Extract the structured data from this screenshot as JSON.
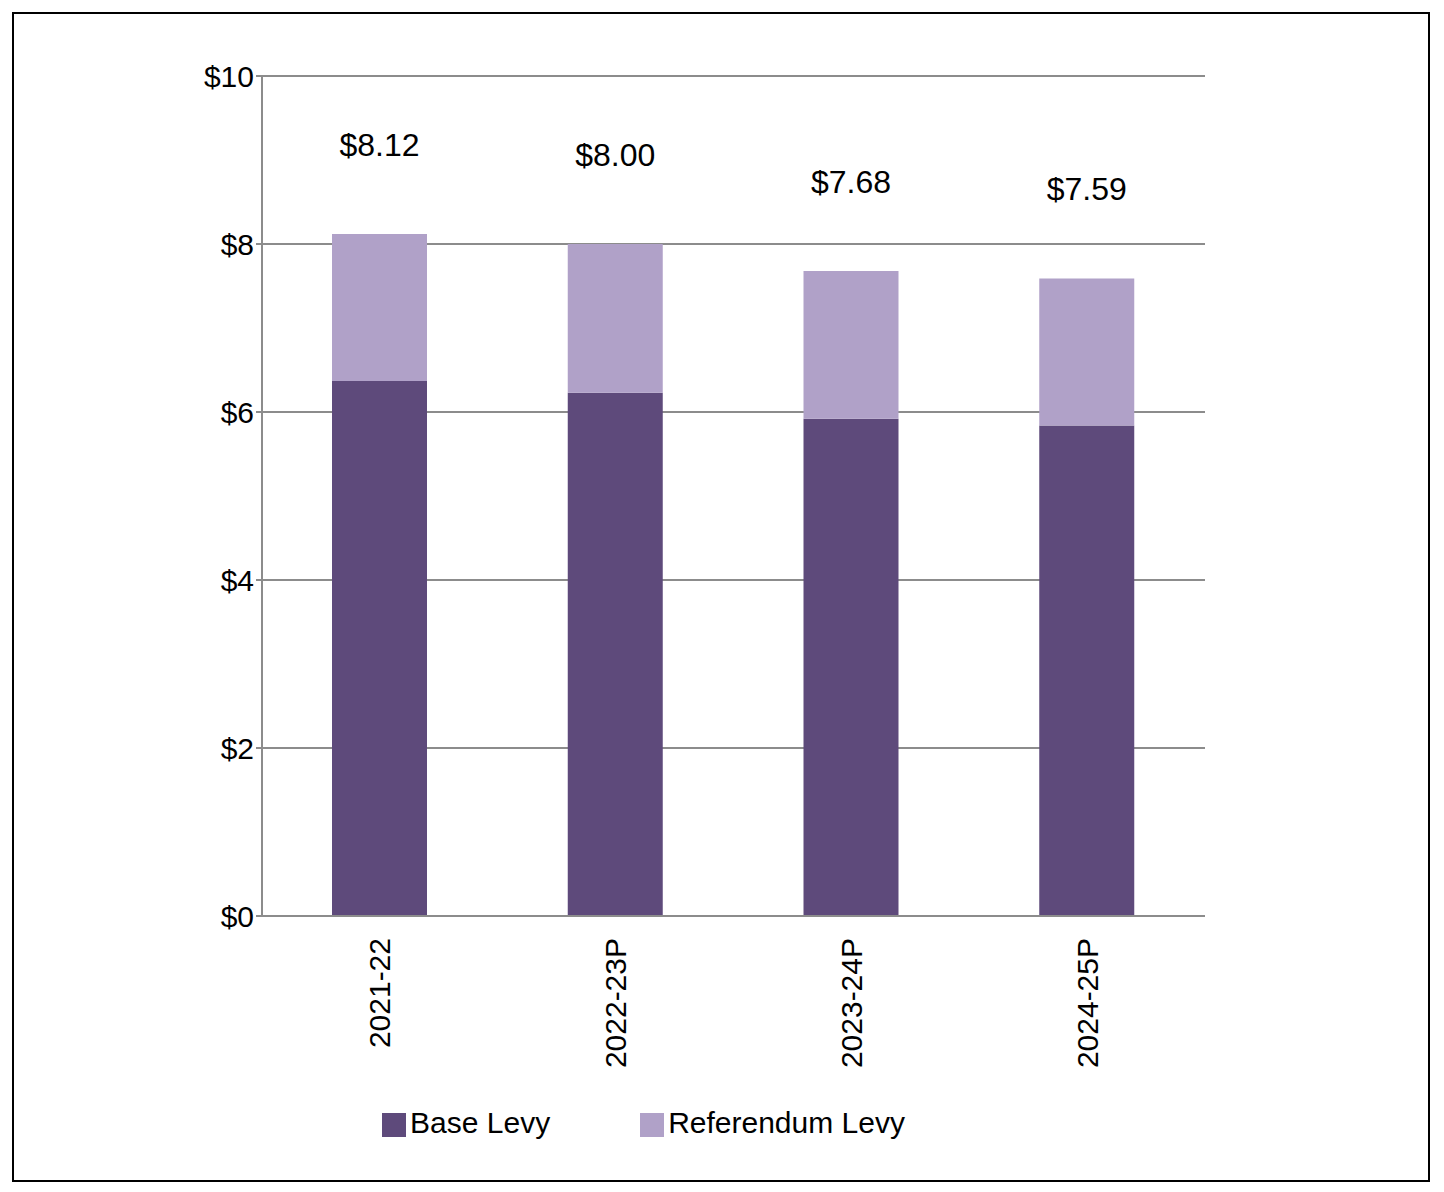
{
  "chart_data": {
    "type": "bar",
    "stacked": true,
    "grid": true,
    "legend": "bottom",
    "categories": [
      "2021-22",
      "2022-23P",
      "2023-24P",
      "2024-25P"
    ],
    "series": [
      {
        "name": "Base Levy",
        "color": "#5e4a7b",
        "values": [
          6.37,
          6.23,
          5.92,
          5.84
        ]
      },
      {
        "name": "Referendum Levy",
        "color": "#b0a1c8",
        "values": [
          1.75,
          1.77,
          1.76,
          1.75
        ]
      }
    ],
    "total_labels": [
      "$8.12",
      "$8.00",
      "$7.68",
      "$7.59"
    ],
    "ylim": [
      0,
      10
    ],
    "yticks": [
      {
        "value": 0,
        "label": "$0"
      },
      {
        "value": 2,
        "label": "$2"
      },
      {
        "value": 4,
        "label": "$4"
      },
      {
        "value": 6,
        "label": "$6"
      },
      {
        "value": 8,
        "label": "$8"
      },
      {
        "value": 10,
        "label": "$10"
      }
    ]
  }
}
